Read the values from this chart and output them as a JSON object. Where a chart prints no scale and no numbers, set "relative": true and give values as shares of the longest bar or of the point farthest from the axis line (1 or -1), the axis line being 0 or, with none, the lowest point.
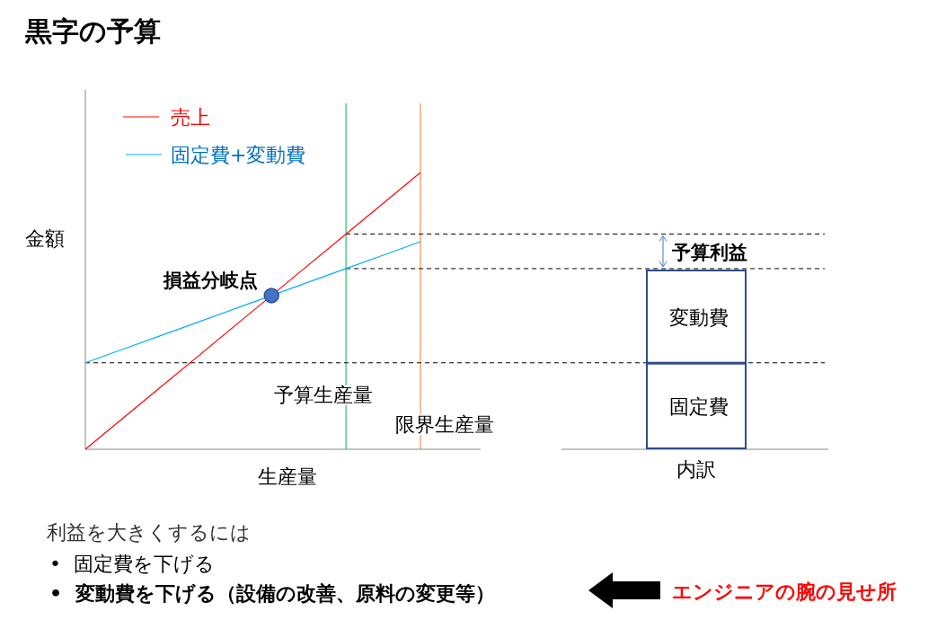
{
  "chart_data": [
    {
      "type": "line",
      "title": "黒字の予算",
      "xlabel": "生産量",
      "ylabel": "金額",
      "relative": true,
      "legend": "top left",
      "categories": [
        null,
        null,
        null,
        null,
        null,
        null,
        null,
        null,
        null,
        null
      ],
      "series": [
        {
          "name": "売上",
          "color": "#ff0000",
          "values": [
            0,
            0.1111,
            0.2222,
            0.3333,
            0.4444,
            0.5556,
            0.6667,
            0.7778,
            0.8889,
            1
          ]
        },
        {
          "name": "固定費+変動費",
          "color": "#00b0f0",
          "values": [
            0.3125,
            0.3611,
            0.4097,
            0.4583,
            0.5069,
            0.5556,
            0.6042,
            0.6528,
            0.7014,
            0.75
          ]
        }
      ],
      "ref_lines": [
        {
          "axis": "y",
          "value": 0.3125,
          "color": "#000000",
          "line_style": "dashed"
        },
        {
          "axis": "y",
          "value": 0.6528,
          "color": "#000000",
          "line_style": "dashed"
        },
        {
          "axis": "y",
          "value": 0.7778,
          "color": "#000000",
          "line_style": "dashed"
        }
      ],
      "annotations": [
        "損益分岐点",
        "予算利益",
        "利益を大きくするには",
        "•  固定費を下げる",
        "•  変動費を下げる（設備の改善、原料の変更等）",
        "エンジニアの腕の見せ所",
        "予算生産量",
        "限界生産量"
      ]
    },
    {
      "type": "bar",
      "stacked": true,
      "relative": true,
      "categories": [
        "内訳"
      ],
      "series": [
        {
          "name": "固定費",
          "color": "#ffffff",
          "values": [
            0.479
          ]
        },
        {
          "name": "変動費",
          "color": "#ffffff",
          "values": [
            0.521
          ]
        }
      ]
    }
  ]
}
